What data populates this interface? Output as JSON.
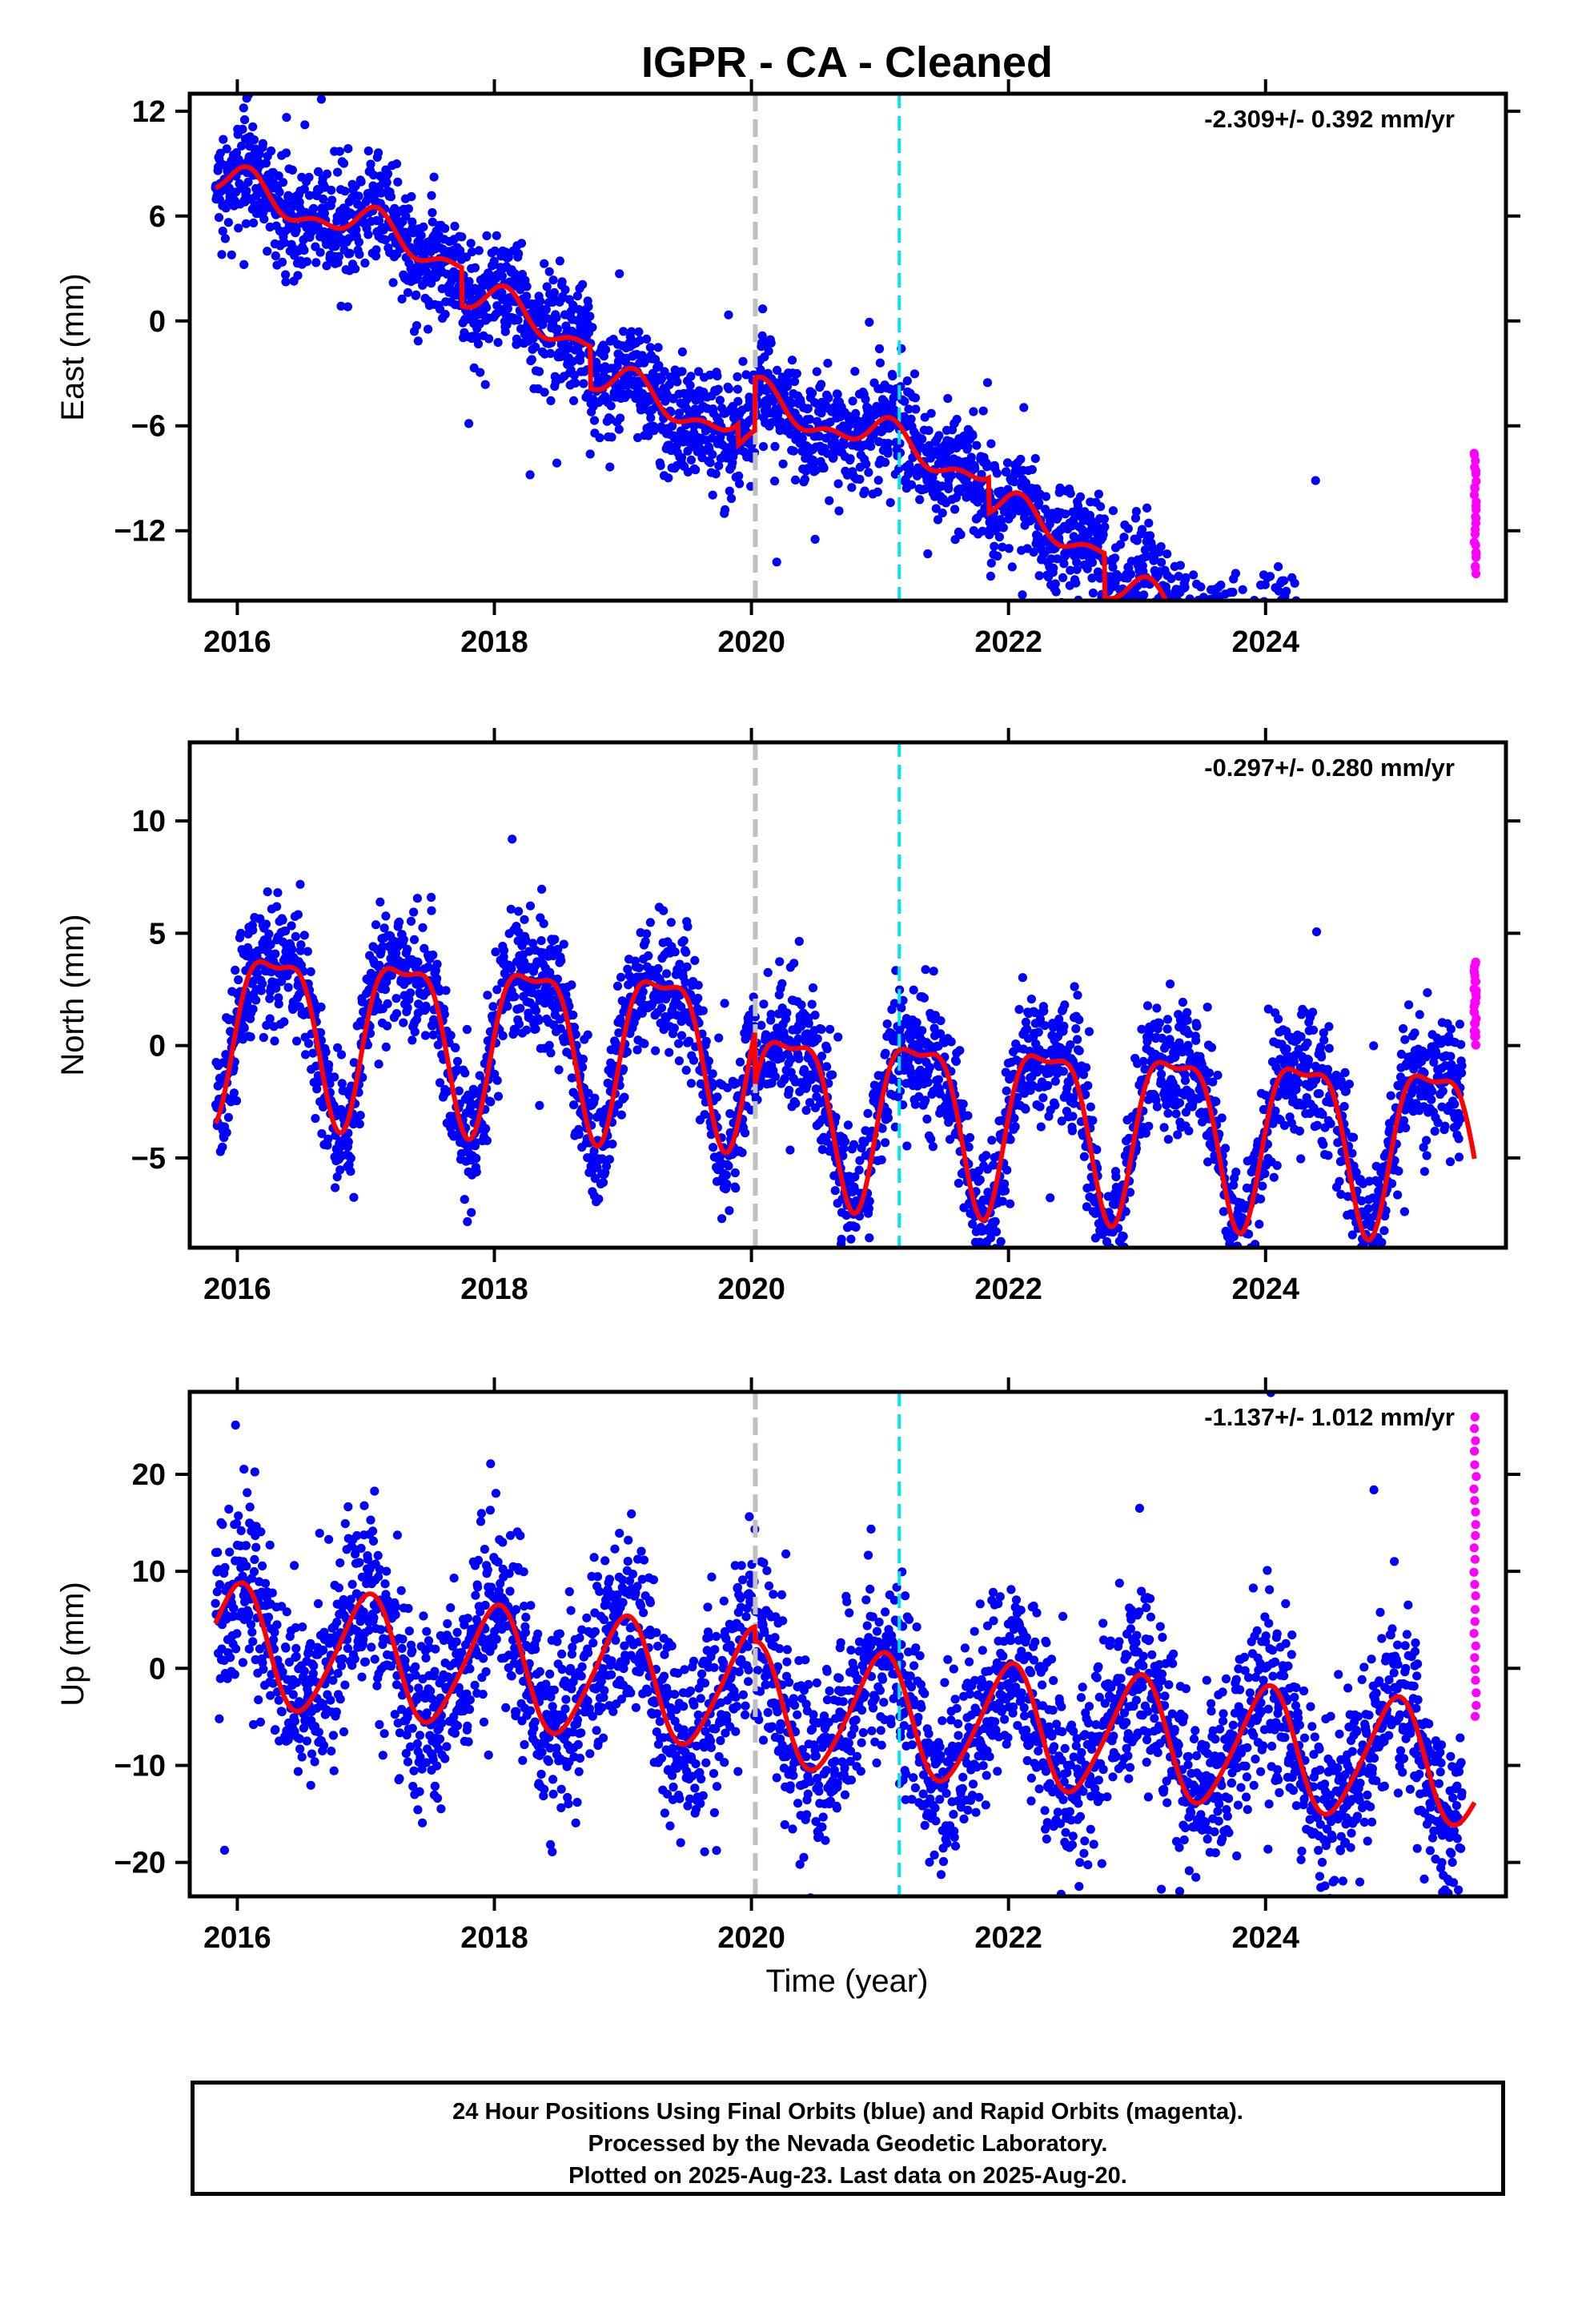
{
  "title": "IGPR  - CA - Cleaned",
  "xlabel": "Time (year)",
  "footer": {
    "line1": "24 Hour Positions Using Final Orbits (blue) and Rapid Orbits (magenta).",
    "line2": "Processed by the Nevada Geodetic Laboratory.",
    "line3": "Plotted on 2025-Aug-23. Last data on 2025-Aug-20."
  },
  "colors": {
    "final_orbits": "#0000ff",
    "rapid_orbits": "#ff00ff",
    "model_fit": "#ff0000",
    "event_gray": "#c0c0c0",
    "event_cyan": "#00e5ee"
  },
  "chart_data": [
    {
      "type": "scatter",
      "component": "East",
      "ylabel": "East (mm)",
      "rate": "-2.309+/- 0.392 mm/yr",
      "xlim": [
        2015.63,
        2025.87
      ],
      "ylim": [
        -16,
        13
      ],
      "xticks": [
        2016,
        2018,
        2020,
        2022,
        2024
      ],
      "yticks": [
        12,
        6,
        0,
        -6,
        -12
      ],
      "ytick_labels": [
        "12",
        "6",
        "0",
        "−6",
        "−12"
      ],
      "event_lines": [
        {
          "x": 2020.03,
          "style": "gray-dashed"
        },
        {
          "x": 2021.15,
          "style": "cyan-dashed"
        }
      ],
      "data_start": 2015.83,
      "final_end": 2025.53,
      "rapid_end": 2025.63,
      "model": {
        "trend_start": 8.0,
        "rate": -2.309,
        "annual_amp": 0.9,
        "annual_phase": 1.2,
        "semiannual_amp": 0.5,
        "semiannual_phase": 0.4,
        "offsets": [
          {
            "x": 2017.75,
            "dy": -2.2
          },
          {
            "x": 2018.75,
            "dy": -2.4
          },
          {
            "x": 2019.9,
            "dy": -1.2
          },
          {
            "x": 2020.03,
            "dy": 3.0
          },
          {
            "x": 2021.85,
            "dy": -2.0
          },
          {
            "x": 2022.75,
            "dy": -2.5
          }
        ]
      },
      "scatter_sigma": 1.6,
      "rapid_range": [
        -14.5,
        -7.5
      ]
    },
    {
      "type": "scatter",
      "component": "North",
      "ylabel": "North (mm)",
      "rate": "-0.297+/- 0.280 mm/yr",
      "xlim": [
        2015.63,
        2025.87
      ],
      "ylim": [
        -9,
        13.5
      ],
      "xticks": [
        2016,
        2018,
        2020,
        2022,
        2024
      ],
      "yticks": [
        10,
        5,
        0,
        -5
      ],
      "ytick_labels": [
        "10",
        "5",
        "0",
        "−5"
      ],
      "event_lines": [
        {
          "x": 2020.03,
          "style": "gray-dashed"
        },
        {
          "x": 2021.15,
          "style": "cyan-dashed"
        }
      ],
      "data_start": 2015.83,
      "final_end": 2025.53,
      "rapid_end": 2025.63,
      "model": {
        "trend_start": 1.2,
        "rate": -0.297,
        "annual_amp": 3.6,
        "annual_phase": -0.3,
        "semiannual_amp": 1.2,
        "semiannual_phase": 0.9,
        "offsets": [
          {
            "x": 2020.03,
            "dy": -2.4
          }
        ]
      },
      "scatter_sigma": 1.4,
      "rapid_range": [
        0,
        3.8
      ]
    },
    {
      "type": "scatter",
      "component": "Up",
      "ylabel": "Up (mm)",
      "rate": "-1.137+/- 1.012 mm/yr",
      "xlim": [
        2015.63,
        2025.87
      ],
      "ylim": [
        -23.5,
        28.5
      ],
      "xticks": [
        2016,
        2018,
        2020,
        2022,
        2024
      ],
      "yticks": [
        20,
        10,
        0,
        -10,
        -20
      ],
      "ytick_labels": [
        "20",
        "10",
        "0",
        "−10",
        "−20"
      ],
      "event_lines": [
        {
          "x": 2020.03,
          "style": "gray-dashed"
        },
        {
          "x": 2021.15,
          "style": "cyan-dashed"
        }
      ],
      "data_start": 2015.83,
      "final_end": 2025.53,
      "rapid_end": 2025.63,
      "model": {
        "trend_start": 2.5,
        "rate": -1.137,
        "annual_amp": 6.2,
        "annual_phase": 1.55,
        "semiannual_amp": 0.8,
        "semiannual_phase": 0.2,
        "offsets": [
          {
            "x": 2020.03,
            "dy": -1.5
          }
        ]
      },
      "scatter_sigma": 4.8,
      "rapid_range": [
        -5,
        26
      ]
    }
  ]
}
